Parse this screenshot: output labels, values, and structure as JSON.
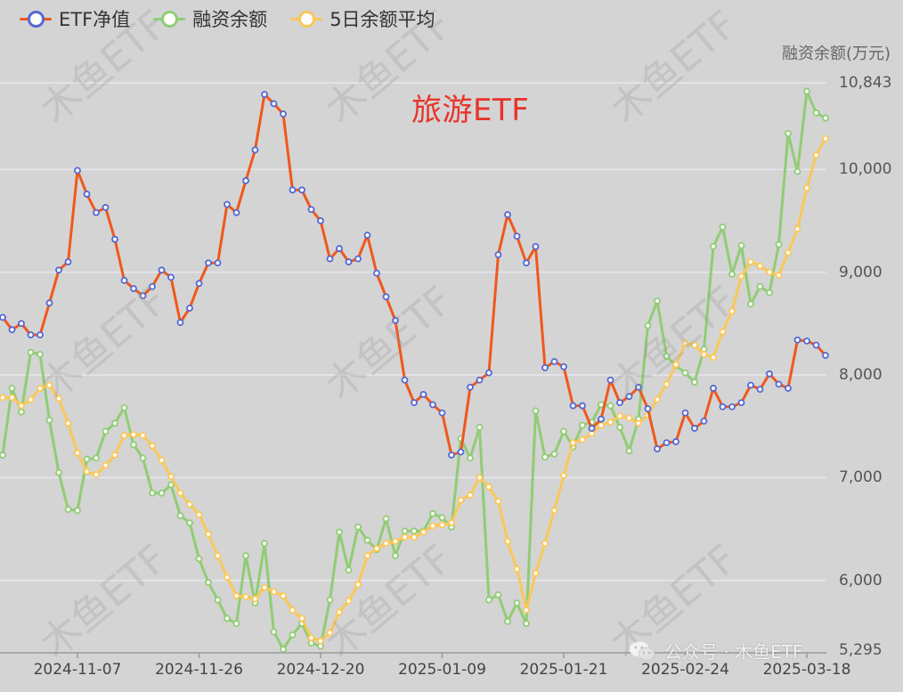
{
  "chart_data": {
    "type": "line",
    "title": "旅游ETF",
    "y2_unit_label": "融资余额(万元)",
    "yaxis": {
      "min": 5295,
      "max": 10843,
      "ticks": [
        5295,
        6000,
        7000,
        8000,
        9000,
        10000,
        10843
      ],
      "tick_labels": [
        "5,295",
        "6,000",
        "7,000",
        "8,000",
        "9,000",
        "10,000",
        "10,843"
      ]
    },
    "x_tick_labels": [
      {
        "label": "2024-11-07",
        "index": 8
      },
      {
        "label": "2024-11-26",
        "index": 21
      },
      {
        "label": "2024-12-20",
        "index": 34
      },
      {
        "label": "2025-01-09",
        "index": 47
      },
      {
        "label": "2025-01-21",
        "index": 60
      },
      {
        "label": "2025-02-24",
        "index": 73
      },
      {
        "label": "2025-03-18",
        "index": 86
      }
    ],
    "grid": true,
    "legend_position": "top-left",
    "series": [
      {
        "name": "ETF净值",
        "line_color": "#f0581d",
        "marker_color": "#5469d4",
        "values": [
          8560,
          8440,
          8500,
          8390,
          8390,
          8700,
          9020,
          9100,
          9990,
          9760,
          9580,
          9630,
          9320,
          8920,
          8840,
          8770,
          8860,
          9020,
          8950,
          8510,
          8650,
          8890,
          9090,
          9090,
          9660,
          9580,
          9890,
          10190,
          10730,
          10640,
          10540,
          9800,
          9800,
          9610,
          9500,
          9130,
          9230,
          9100,
          9130,
          9360,
          8990,
          8760,
          8530,
          7950,
          7730,
          7810,
          7710,
          7630,
          7220,
          7250,
          7880,
          7950,
          8020,
          9170,
          9560,
          9350,
          9090,
          9250,
          8070,
          8130,
          8080,
          7700,
          7700,
          7480,
          7570,
          7950,
          7730,
          7790,
          7880,
          7670,
          7280,
          7340,
          7350,
          7630,
          7480,
          7550,
          7870,
          7690,
          7690,
          7730,
          7900,
          7860,
          8010,
          7910,
          7870,
          8340,
          8330,
          8290,
          8190
        ]
      },
      {
        "name": "融资余额",
        "line_color": "#91cc75",
        "marker_color": "#91cc75",
        "values": [
          7220,
          7870,
          7640,
          8220,
          8200,
          7560,
          7050,
          6690,
          6680,
          7180,
          7190,
          7450,
          7530,
          7680,
          7320,
          7190,
          6850,
          6850,
          6930,
          6630,
          6560,
          6210,
          5980,
          5810,
          5630,
          5580,
          6240,
          5780,
          6360,
          5500,
          5330,
          5470,
          5580,
          5390,
          5360,
          5810,
          6470,
          6100,
          6520,
          6390,
          6300,
          6600,
          6240,
          6480,
          6480,
          6480,
          6650,
          6610,
          6520,
          7380,
          7190,
          7490,
          5810,
          5860,
          5600,
          5780,
          5580,
          7650,
          7200,
          7230,
          7450,
          7300,
          7510,
          7540,
          7710,
          7700,
          7490,
          7260,
          7570,
          8480,
          8720,
          8180,
          8090,
          8020,
          7930,
          8250,
          9250,
          9440,
          8980,
          9260,
          8690,
          8860,
          8800,
          9270,
          10350,
          9980,
          10760,
          10550,
          10500
        ]
      },
      {
        "name": "5日余额平均",
        "line_color": "#fac858",
        "marker_color": "#fac858",
        "values": [
          7780,
          7780,
          7700,
          7760,
          7870,
          7900,
          7770,
          7530,
          7240,
          7060,
          7030,
          7120,
          7220,
          7410,
          7420,
          7410,
          7310,
          7170,
          7010,
          6850,
          6740,
          6640,
          6450,
          6240,
          6030,
          5850,
          5840,
          5820,
          5930,
          5890,
          5850,
          5710,
          5630,
          5440,
          5410,
          5490,
          5690,
          5800,
          5960,
          6240,
          6310,
          6360,
          6380,
          6420,
          6420,
          6470,
          6530,
          6540,
          6560,
          6780,
          6830,
          7000,
          6910,
          6770,
          6380,
          6110,
          5710,
          6070,
          6360,
          6680,
          7020,
          7340,
          7370,
          7430,
          7510,
          7540,
          7600,
          7580,
          7530,
          7610,
          7760,
          7910,
          8100,
          8310,
          8290,
          8200,
          8170,
          8420,
          8620,
          8960,
          9100,
          9060,
          9000,
          8970,
          9190,
          9420,
          9820,
          10140,
          10300
        ]
      }
    ]
  },
  "legend": [
    {
      "label": "ETF净值",
      "line_color": "#f0581d",
      "dot_color": "#5469d4"
    },
    {
      "label": "融资余额",
      "line_color": "#91cc75",
      "dot_color": "#91cc75"
    },
    {
      "label": "5日余额平均",
      "line_color": "#fac858",
      "dot_color": "#fac858"
    }
  ],
  "watermark_text": "木鱼ETF",
  "credit": {
    "text": "公众号 · 木鱼ETF",
    "icon": "wechat-icon"
  }
}
